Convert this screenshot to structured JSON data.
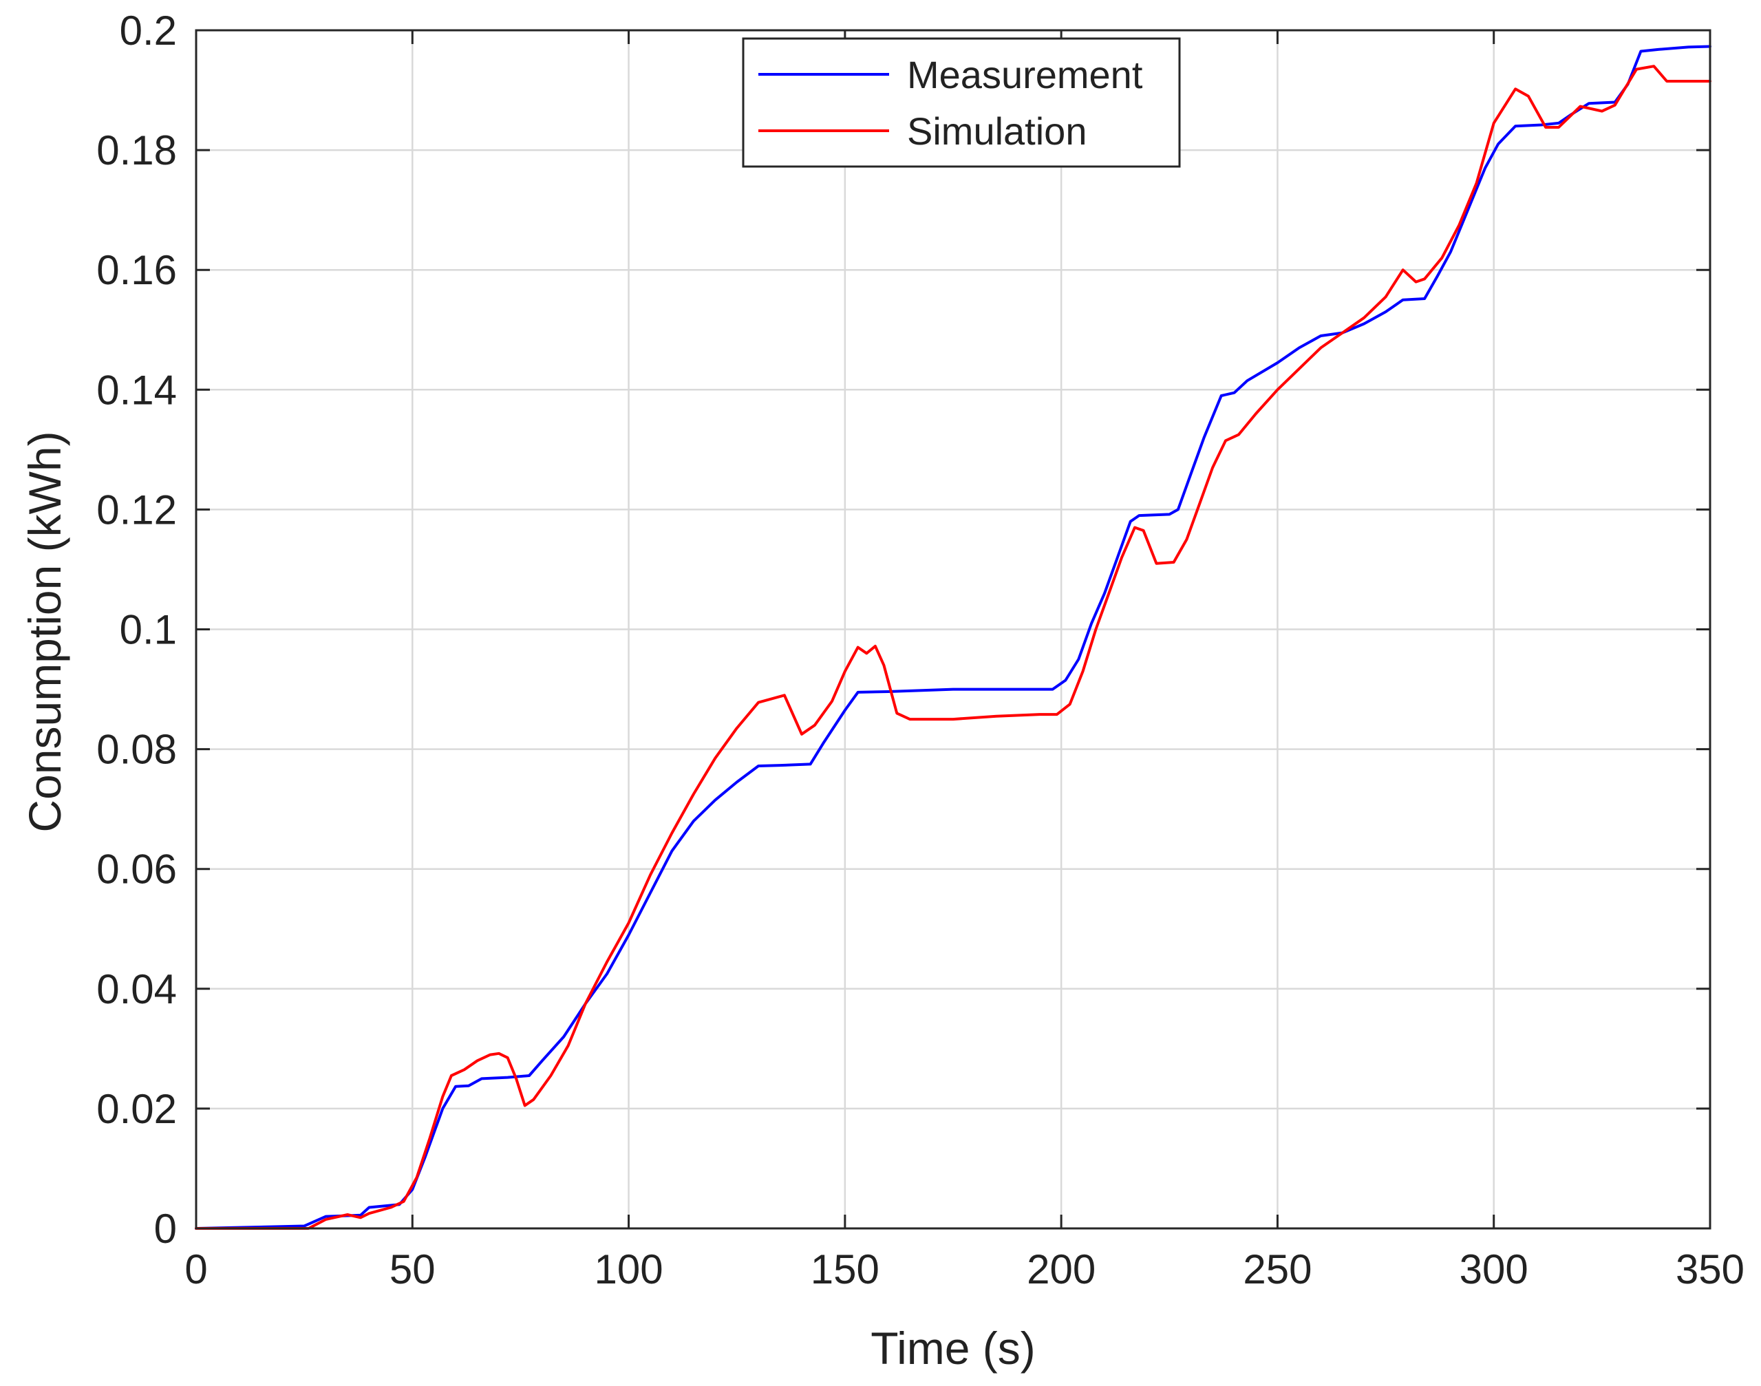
{
  "chart_data": {
    "type": "line",
    "title": "",
    "xlabel": "Time (s)",
    "ylabel": "Consumption (kWh)",
    "xlim": [
      0,
      350
    ],
    "ylim": [
      0,
      0.2
    ],
    "xticks": [
      "0",
      "50",
      "100",
      "150",
      "200",
      "250",
      "300",
      "350"
    ],
    "yticks": [
      "0",
      "0.02",
      "0.04",
      "0.06",
      "0.08",
      "0.1",
      "0.12",
      "0.14",
      "0.16",
      "0.18",
      "0.2"
    ],
    "grid": true,
    "legend_position": "top-center",
    "series": [
      {
        "name": "Measurement",
        "color": "#0000ff",
        "points": [
          [
            0,
            0
          ],
          [
            25,
            0.0004
          ],
          [
            30,
            0.002
          ],
          [
            38,
            0.0022
          ],
          [
            40,
            0.0035
          ],
          [
            47,
            0.004
          ],
          [
            50,
            0.0065
          ],
          [
            53,
            0.012
          ],
          [
            57,
            0.02
          ],
          [
            60,
            0.0237
          ],
          [
            63,
            0.0238
          ],
          [
            66,
            0.025
          ],
          [
            72,
            0.0252
          ],
          [
            77,
            0.0255
          ],
          [
            80,
            0.028
          ],
          [
            85,
            0.032
          ],
          [
            90,
            0.0375
          ],
          [
            95,
            0.0425
          ],
          [
            100,
            0.049
          ],
          [
            105,
            0.056
          ],
          [
            110,
            0.063
          ],
          [
            115,
            0.068
          ],
          [
            120,
            0.0715
          ],
          [
            125,
            0.0745
          ],
          [
            130,
            0.0772
          ],
          [
            135,
            0.0773
          ],
          [
            142,
            0.0775
          ],
          [
            145,
            0.081
          ],
          [
            150,
            0.0865
          ],
          [
            153,
            0.0895
          ],
          [
            160,
            0.0896
          ],
          [
            175,
            0.09
          ],
          [
            190,
            0.09
          ],
          [
            198,
            0.09
          ],
          [
            201,
            0.0915
          ],
          [
            204,
            0.095
          ],
          [
            207,
            0.101
          ],
          [
            210,
            0.106
          ],
          [
            213,
            0.112
          ],
          [
            216,
            0.118
          ],
          [
            218,
            0.119
          ],
          [
            225,
            0.1192
          ],
          [
            227,
            0.12
          ],
          [
            230,
            0.126
          ],
          [
            233,
            0.132
          ],
          [
            237,
            0.139
          ],
          [
            240,
            0.1395
          ],
          [
            243,
            0.1415
          ],
          [
            250,
            0.1445
          ],
          [
            255,
            0.147
          ],
          [
            260,
            0.149
          ],
          [
            265,
            0.1495
          ],
          [
            270,
            0.151
          ],
          [
            275,
            0.153
          ],
          [
            279,
            0.155
          ],
          [
            284,
            0.1552
          ],
          [
            287,
            0.159
          ],
          [
            290,
            0.163
          ],
          [
            294,
            0.17
          ],
          [
            298,
            0.177
          ],
          [
            301,
            0.181
          ],
          [
            305,
            0.184
          ],
          [
            311,
            0.1842
          ],
          [
            315,
            0.1845
          ],
          [
            318,
            0.186
          ],
          [
            322,
            0.1878
          ],
          [
            328,
            0.188
          ],
          [
            331,
            0.191
          ],
          [
            334,
            0.1965
          ],
          [
            338,
            0.1968
          ],
          [
            345,
            0.1972
          ],
          [
            350,
            0.1973
          ]
        ]
      },
      {
        "name": "Simulation",
        "color": "#ff0000",
        "points": [
          [
            0,
            0
          ],
          [
            26,
            0
          ],
          [
            30,
            0.0015
          ],
          [
            35,
            0.0023
          ],
          [
            38,
            0.0018
          ],
          [
            40,
            0.0025
          ],
          [
            45,
            0.0035
          ],
          [
            48,
            0.0045
          ],
          [
            51,
            0.0085
          ],
          [
            54,
            0.015
          ],
          [
            57,
            0.022
          ],
          [
            59,
            0.0255
          ],
          [
            62,
            0.0265
          ],
          [
            65,
            0.028
          ],
          [
            68,
            0.029
          ],
          [
            70,
            0.0292
          ],
          [
            72,
            0.0285
          ],
          [
            74,
            0.025
          ],
          [
            76,
            0.0205
          ],
          [
            78,
            0.0215
          ],
          [
            82,
            0.0255
          ],
          [
            86,
            0.0305
          ],
          [
            90,
            0.0375
          ],
          [
            95,
            0.0445
          ],
          [
            100,
            0.051
          ],
          [
            105,
            0.059
          ],
          [
            110,
            0.066
          ],
          [
            115,
            0.0725
          ],
          [
            120,
            0.0785
          ],
          [
            125,
            0.0835
          ],
          [
            130,
            0.0878
          ],
          [
            136,
            0.089
          ],
          [
            140,
            0.0825
          ],
          [
            143,
            0.084
          ],
          [
            147,
            0.088
          ],
          [
            150,
            0.093
          ],
          [
            153,
            0.097
          ],
          [
            155,
            0.096
          ],
          [
            157,
            0.0972
          ],
          [
            159,
            0.094
          ],
          [
            162,
            0.086
          ],
          [
            165,
            0.085
          ],
          [
            175,
            0.085
          ],
          [
            185,
            0.0855
          ],
          [
            195,
            0.0858
          ],
          [
            199,
            0.0858
          ],
          [
            202,
            0.0875
          ],
          [
            205,
            0.093
          ],
          [
            208,
            0.1
          ],
          [
            211,
            0.106
          ],
          [
            214,
            0.112
          ],
          [
            217,
            0.117
          ],
          [
            219,
            0.1165
          ],
          [
            222,
            0.111
          ],
          [
            226,
            0.1112
          ],
          [
            229,
            0.115
          ],
          [
            232,
            0.121
          ],
          [
            235,
            0.127
          ],
          [
            238,
            0.1315
          ],
          [
            241,
            0.1325
          ],
          [
            245,
            0.136
          ],
          [
            250,
            0.14
          ],
          [
            255,
            0.1435
          ],
          [
            260,
            0.147
          ],
          [
            265,
            0.1495
          ],
          [
            270,
            0.152
          ],
          [
            275,
            0.1555
          ],
          [
            279,
            0.16
          ],
          [
            282,
            0.158
          ],
          [
            284,
            0.1585
          ],
          [
            288,
            0.162
          ],
          [
            292,
            0.1675
          ],
          [
            296,
            0.1745
          ],
          [
            300,
            0.1845
          ],
          [
            305,
            0.1902
          ],
          [
            308,
            0.189
          ],
          [
            312,
            0.1838
          ],
          [
            315,
            0.1838
          ],
          [
            320,
            0.1873
          ],
          [
            325,
            0.1865
          ],
          [
            328,
            0.1875
          ],
          [
            333,
            0.1935
          ],
          [
            337,
            0.194
          ],
          [
            340,
            0.1915
          ],
          [
            345,
            0.1915
          ],
          [
            350,
            0.1915
          ]
        ]
      }
    ]
  }
}
